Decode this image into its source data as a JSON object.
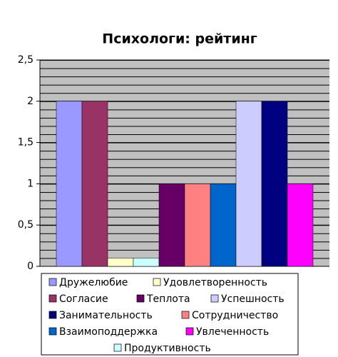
{
  "chart_data": {
    "type": "bar",
    "title": "Психологи: рейтинг",
    "series": [
      {
        "name": "Дружелюбие",
        "color": "#9999ff",
        "values": [
          2
        ]
      },
      {
        "name": "Согласие",
        "color": "#993366",
        "values": [
          2
        ]
      },
      {
        "name": "Удовлетворенность",
        "color": "#ffffcc",
        "values": [
          0.1
        ]
      },
      {
        "name": "Продуктивность",
        "color": "#ccffff",
        "values": [
          0.1
        ]
      },
      {
        "name": "Теплота",
        "color": "#660066",
        "values": [
          1
        ]
      },
      {
        "name": "Сотрудничество",
        "color": "#ff8080",
        "values": [
          1
        ]
      },
      {
        "name": "Взаимоподдержка",
        "color": "#0066cc",
        "values": [
          1
        ]
      },
      {
        "name": "Успешность",
        "color": "#ccccff",
        "values": [
          2
        ]
      },
      {
        "name": "Занимательность",
        "color": "#000080",
        "values": [
          2
        ]
      },
      {
        "name": "Увлеченность",
        "color": "#ff00ff",
        "values": [
          1
        ]
      }
    ],
    "ylim": [
      0,
      2.5
    ],
    "yticks": [
      0,
      {
        "value": 0.5,
        "label": "0,5"
      },
      1,
      {
        "value": 1.5,
        "label": "1,5"
      },
      2,
      {
        "value": 2.5,
        "label": "2,5"
      }
    ],
    "grid": true
  }
}
